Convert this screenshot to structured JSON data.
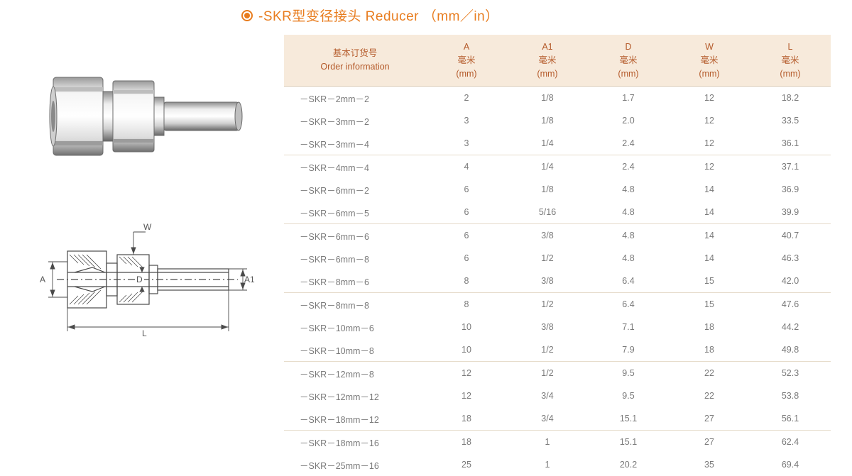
{
  "title": "-SKR型变径接头  Reducer （mm／in）",
  "title_color": "#e87c1e",
  "dim_labels": {
    "W": "W",
    "A": "A",
    "D": "D",
    "A1": "A1",
    "L": "L"
  },
  "table": {
    "header_bg": "#f7eadb",
    "header_color": "#b45a2a",
    "row_border_color": "#e6dccb",
    "cell_color": "#7a7a7a",
    "columns": [
      {
        "zh": "基本订货号",
        "en": "Order  information",
        "unit": ""
      },
      {
        "zh": "A",
        "en": "毫米",
        "unit": "(mm)"
      },
      {
        "zh": "A1",
        "en": "毫米",
        "unit": "(mm)"
      },
      {
        "zh": "D",
        "en": "毫米",
        "unit": "(mm)"
      },
      {
        "zh": "W",
        "en": "毫米",
        "unit": "(mm)"
      },
      {
        "zh": "L",
        "en": "毫米",
        "unit": "(mm)"
      }
    ],
    "group_size": 3,
    "rows": [
      [
        "－SKR－2mm－2",
        "2",
        "1/8",
        "1.7",
        "12",
        "18.2"
      ],
      [
        "－SKR－3mm－2",
        "3",
        "1/8",
        "2.0",
        "12",
        "33.5"
      ],
      [
        "－SKR－3mm－4",
        "3",
        "1/4",
        "2.4",
        "12",
        "36.1"
      ],
      [
        "－SKR－4mm－4",
        "4",
        "1/4",
        "2.4",
        "12",
        "37.1"
      ],
      [
        "－SKR－6mm－2",
        "6",
        "1/8",
        "4.8",
        "14",
        "36.9"
      ],
      [
        "－SKR－6mm－5",
        "6",
        "5/16",
        "4.8",
        "14",
        "39.9"
      ],
      [
        "－SKR－6mm－6",
        "6",
        "3/8",
        "4.8",
        "14",
        "40.7"
      ],
      [
        "－SKR－6mm－8",
        "6",
        "1/2",
        "4.8",
        "14",
        "46.3"
      ],
      [
        "－SKR－8mm－6",
        "8",
        "3/8",
        "6.4",
        "15",
        "42.0"
      ],
      [
        "－SKR－8mm－8",
        "8",
        "1/2",
        "6.4",
        "15",
        "47.6"
      ],
      [
        "－SKR－10mm－6",
        "10",
        "3/8",
        "7.1",
        "18",
        "44.2"
      ],
      [
        "－SKR－10mm－8",
        "10",
        "1/2",
        "7.9",
        "18",
        "49.8"
      ],
      [
        "－SKR－12mm－8",
        "12",
        "1/2",
        "9.5",
        "22",
        "52.3"
      ],
      [
        "－SKR－12mm－12",
        "12",
        "3/4",
        "9.5",
        "22",
        "53.8"
      ],
      [
        "－SKR－18mm－12",
        "18",
        "3/4",
        "15.1",
        "27",
        "56.1"
      ],
      [
        "－SKR－18mm－16",
        "18",
        "1",
        "15.1",
        "27",
        "62.4"
      ],
      [
        "－SKR－25mm－16",
        "25",
        "1",
        "20.2",
        "35",
        "69.4"
      ]
    ]
  },
  "photo_colors": {
    "metal_light": "#f2f2f2",
    "metal_mid": "#cfcfcf",
    "metal_dark": "#8a8a8a",
    "outline": "#6b6b6b"
  },
  "drawing_colors": {
    "stroke": "#4a4a4a",
    "hatch": "#4a4a4a",
    "centerline": "#4a4a4a"
  }
}
